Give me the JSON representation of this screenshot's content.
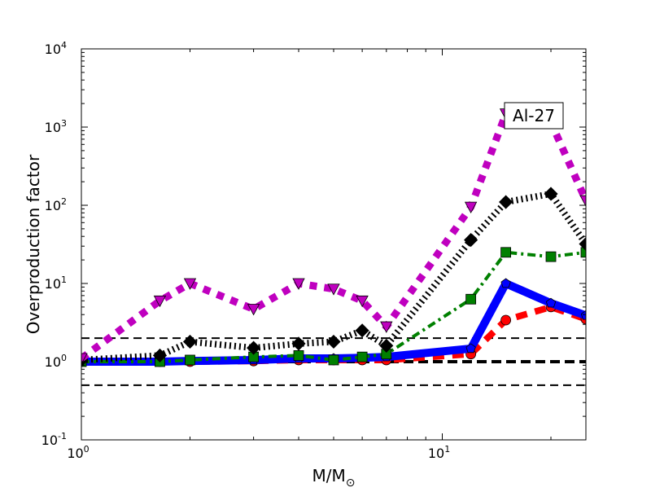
{
  "chart_data": {
    "type": "line",
    "title": "",
    "xlabel": "M/M",
    "xlabel_subscript": "⊙",
    "ylabel": "Overproduction factor",
    "xscale": "log",
    "yscale": "log",
    "xlim": [
      1,
      25
    ],
    "ylim": [
      0.1,
      10000
    ],
    "grid": false,
    "x_ticks": [
      {
        "value": 1,
        "label": "10",
        "exp": "0"
      },
      {
        "value": 10,
        "label": "10",
        "exp": "1"
      }
    ],
    "y_ticks": [
      {
        "value": 0.1,
        "label": "10",
        "exp": "-1"
      },
      {
        "value": 1,
        "label": "10",
        "exp": "0"
      },
      {
        "value": 10,
        "label": "10",
        "exp": "1"
      },
      {
        "value": 100,
        "label": "10",
        "exp": "2"
      },
      {
        "value": 1000,
        "label": "10",
        "exp": "3"
      },
      {
        "value": 10000,
        "label": "10",
        "exp": "4"
      }
    ],
    "annotation": "Al-27",
    "reference_lines": [
      {
        "y": 0.5,
        "style": "dashed",
        "color": "#000000"
      },
      {
        "y": 1,
        "style": "dashed-thick",
        "color": "#000000"
      },
      {
        "y": 2,
        "style": "dashed",
        "color": "#000000"
      }
    ],
    "x": [
      1,
      1.65,
      2,
      3,
      4,
      5,
      6,
      7,
      12,
      15,
      20,
      25
    ],
    "series": [
      {
        "color": "#ff0000",
        "style": "dashed",
        "marker": "circle",
        "values": [
          1.0,
          1.0,
          1.0,
          1.02,
          1.05,
          1.05,
          1.05,
          1.05,
          1.25,
          3.4,
          5.0,
          3.5
        ]
      },
      {
        "color": "#0000ff",
        "style": "solid",
        "marker": "pentagon",
        "values": [
          1.0,
          1.0,
          1.02,
          1.05,
          1.1,
          1.1,
          1.12,
          1.15,
          1.47,
          10,
          5.6,
          3.9
        ]
      },
      {
        "color": "#008000",
        "style": "dashdot",
        "marker": "square",
        "values": [
          1.0,
          1.0,
          1.05,
          1.15,
          1.2,
          1.05,
          1.15,
          1.25,
          6.3,
          25,
          22,
          25
        ]
      },
      {
        "color": "#000000",
        "style": "dotted",
        "marker": "diamond",
        "values": [
          1.05,
          1.2,
          1.8,
          1.5,
          1.7,
          1.8,
          2.5,
          1.6,
          36,
          110,
          140,
          32
        ]
      },
      {
        "color": "#bf00bf",
        "style": "dotted-thick",
        "marker": "triangle-down",
        "values": [
          1.1,
          6,
          10,
          4.7,
          10,
          8.5,
          6,
          2.8,
          95,
          1480,
          1150,
          115
        ]
      }
    ]
  }
}
